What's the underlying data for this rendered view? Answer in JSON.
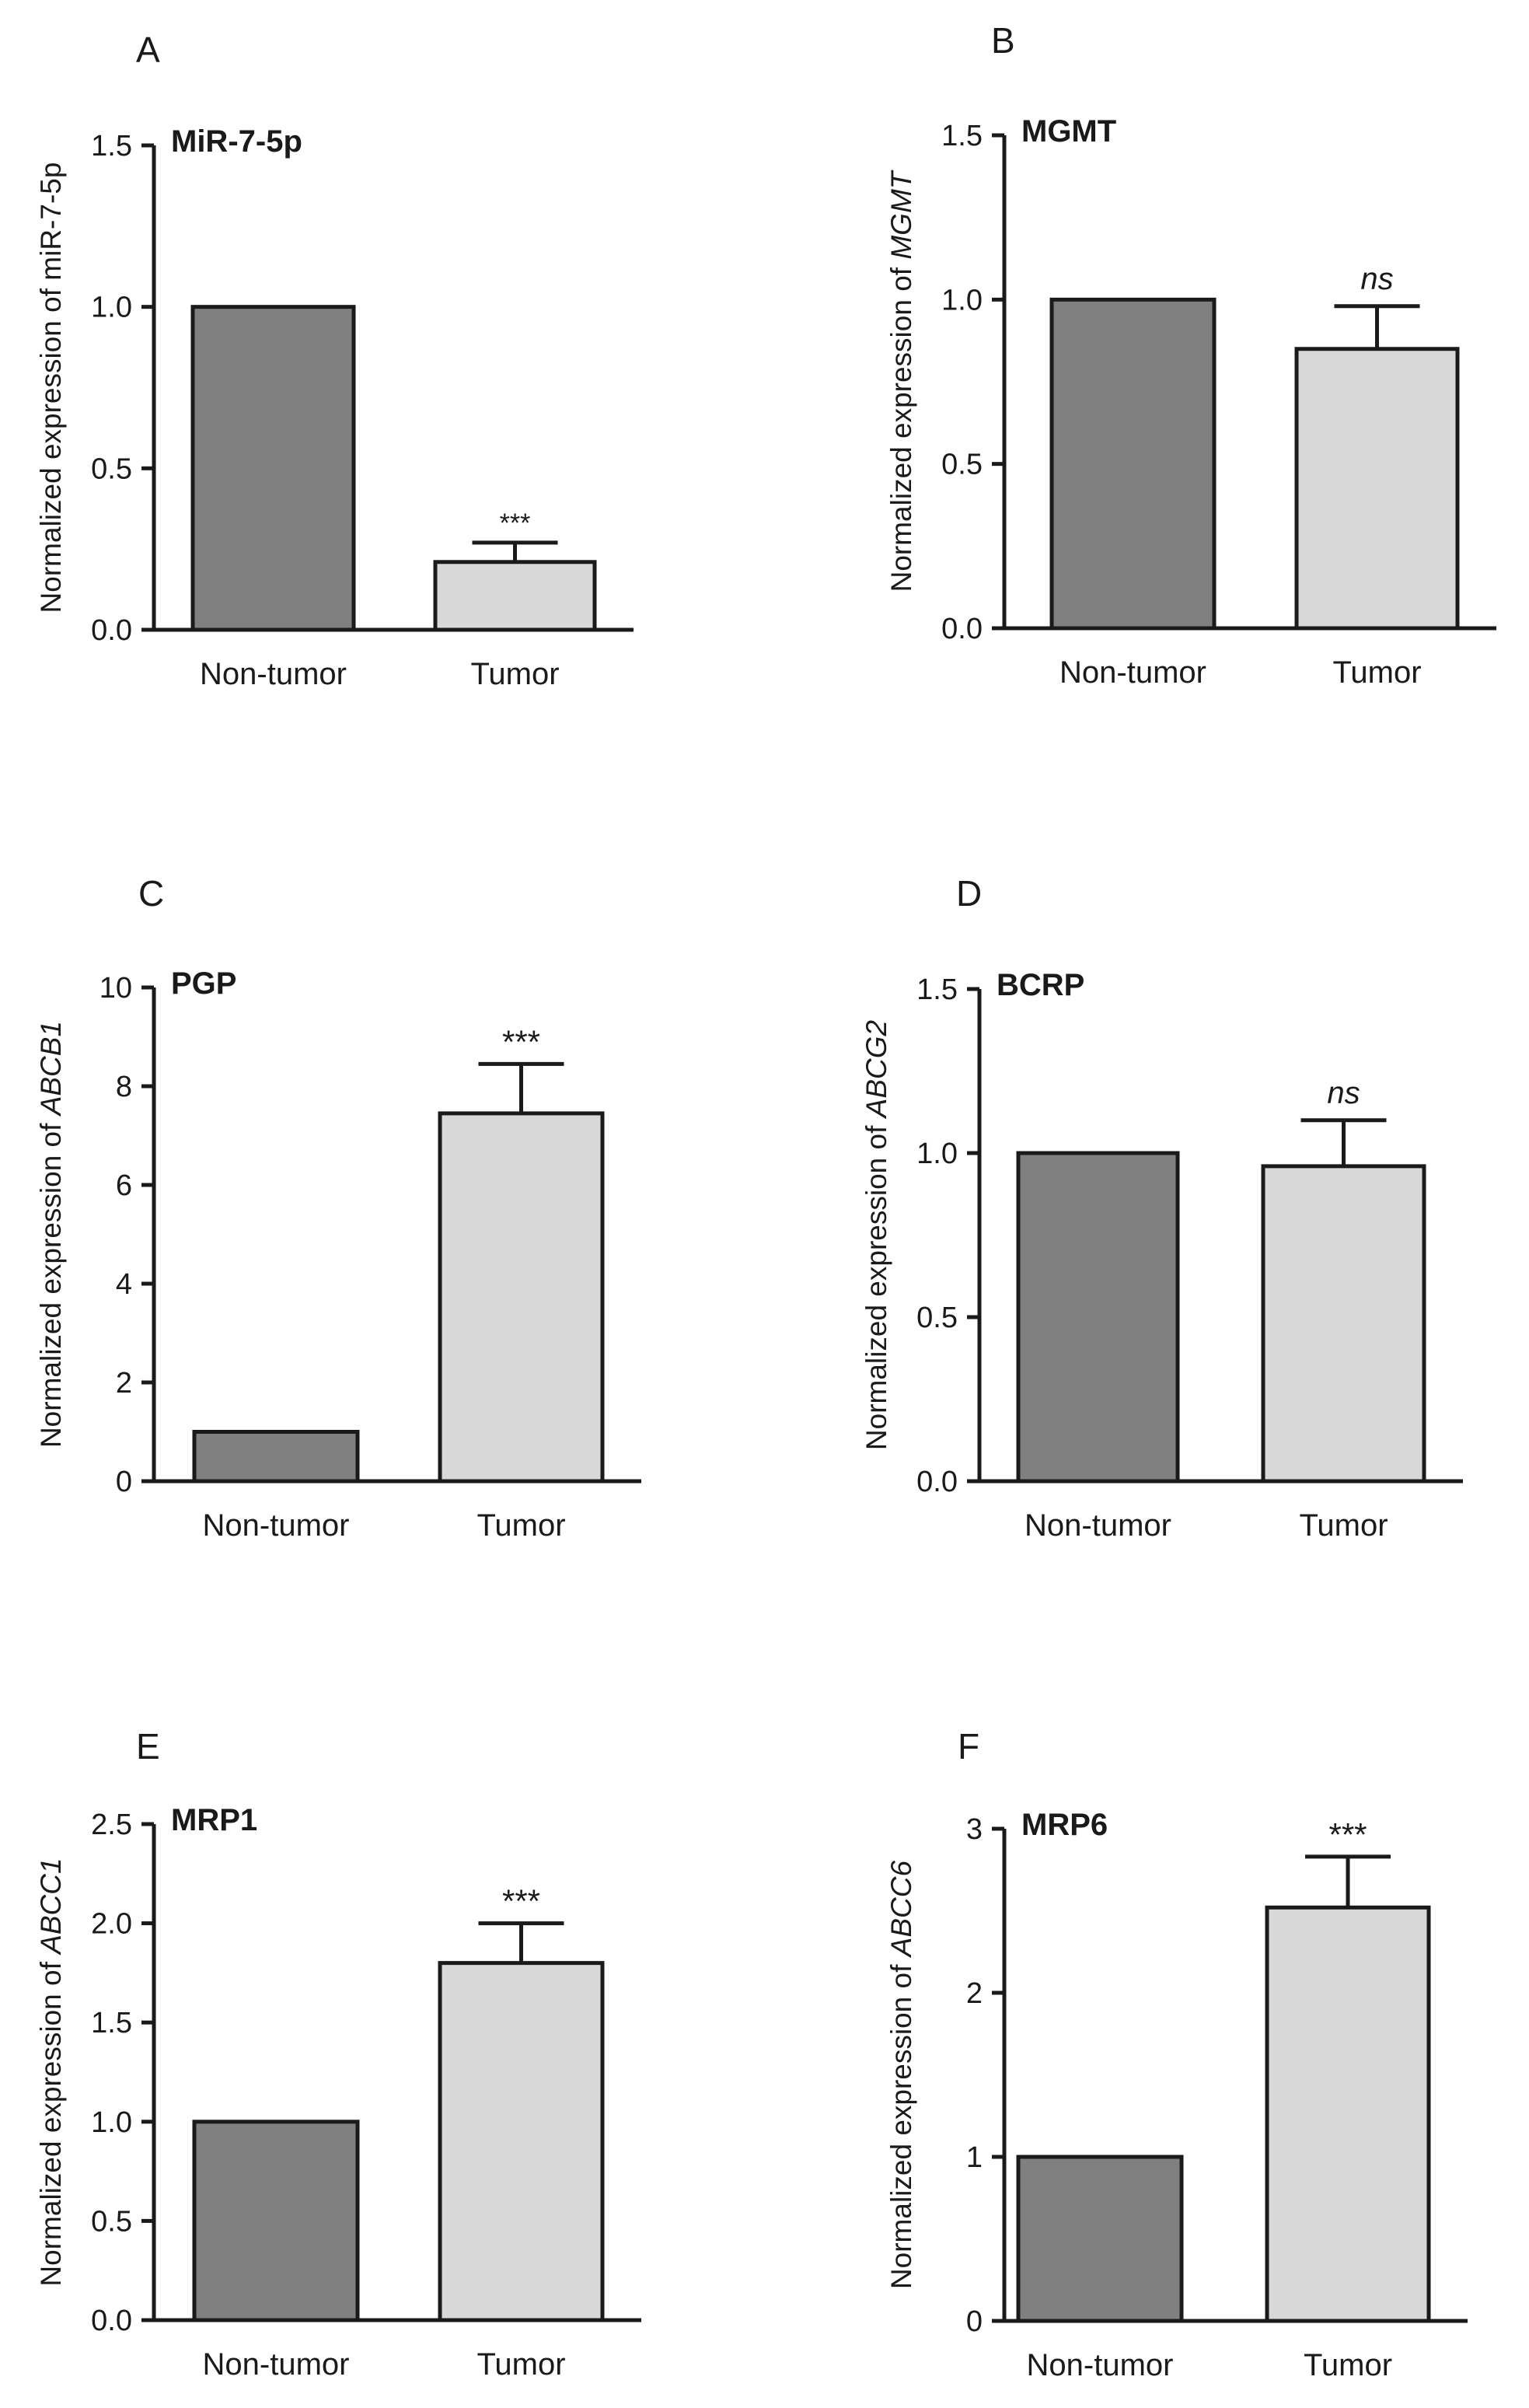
{
  "colors": {
    "non_tumor_bar": "#808080",
    "tumor_bar": "#d8d8d8",
    "axis": "#1a1a1a"
  },
  "chart_data": [
    {
      "panel": "A",
      "type": "bar",
      "title": "MiR-7-5p",
      "ylabel_prefix": "Normalized expression of ",
      "ylabel_gene": "miR-7-5p",
      "ylabel_gene_italic": false,
      "categories": [
        "Non-tumor",
        "Tumor"
      ],
      "values": [
        1.0,
        0.21
      ],
      "errors": [
        0,
        0.06
      ],
      "significance": [
        "",
        "***"
      ],
      "significance_italic": false,
      "ylim": [
        0,
        1.5
      ],
      "yticks": [
        0.0,
        0.5,
        1.0,
        1.5
      ],
      "ytick_labels": [
        "0.0",
        "0.5",
        "1.0",
        "1.5"
      ]
    },
    {
      "panel": "B",
      "type": "bar",
      "title": "MGMT",
      "ylabel_prefix": "Normalized expression of ",
      "ylabel_gene": "MGMT",
      "ylabel_gene_italic": true,
      "categories": [
        "Non-tumor",
        "Tumor"
      ],
      "values": [
        1.0,
        0.85
      ],
      "errors": [
        0,
        0.13
      ],
      "significance": [
        "",
        "ns"
      ],
      "significance_italic": true,
      "ylim": [
        0,
        1.5
      ],
      "yticks": [
        0.0,
        0.5,
        1.0,
        1.5
      ],
      "ytick_labels": [
        "0.0",
        "0.5",
        "1.0",
        "1.5"
      ]
    },
    {
      "panel": "C",
      "type": "bar",
      "title": "PGP",
      "ylabel_prefix": "Normalized expression of ",
      "ylabel_gene": "ABCB1",
      "ylabel_gene_italic": true,
      "categories": [
        "Non-tumor",
        "Tumor"
      ],
      "values": [
        1.0,
        7.45
      ],
      "errors": [
        0,
        1.0
      ],
      "significance": [
        "",
        "***"
      ],
      "significance_italic": false,
      "ylim": [
        0,
        10
      ],
      "yticks": [
        0,
        2,
        4,
        6,
        8,
        10
      ],
      "ytick_labels": [
        "0",
        "2",
        "4",
        "6",
        "8",
        "10"
      ]
    },
    {
      "panel": "D",
      "type": "bar",
      "title": "BCRP",
      "ylabel_prefix": "Normalized expression of ",
      "ylabel_gene": "ABCG2",
      "ylabel_gene_italic": true,
      "categories": [
        "Non-tumor",
        "Tumor"
      ],
      "values": [
        1.0,
        0.96
      ],
      "errors": [
        0,
        0.14
      ],
      "significance": [
        "",
        "ns"
      ],
      "significance_italic": true,
      "ylim": [
        0,
        1.5
      ],
      "yticks": [
        0.0,
        0.5,
        1.0,
        1.5
      ],
      "ytick_labels": [
        "0.0",
        "0.5",
        "1.0",
        "1.5"
      ]
    },
    {
      "panel": "E",
      "type": "bar",
      "title": "MRP1",
      "ylabel_prefix": "Normalized expression of ",
      "ylabel_gene": "ABCC1",
      "ylabel_gene_italic": true,
      "categories": [
        "Non-tumor",
        "Tumor"
      ],
      "values": [
        1.0,
        1.8
      ],
      "errors": [
        0,
        0.2
      ],
      "significance": [
        "",
        "***"
      ],
      "significance_italic": false,
      "ylim": [
        0,
        2.5
      ],
      "yticks": [
        0.0,
        0.5,
        1.0,
        1.5,
        2.0,
        2.5
      ],
      "ytick_labels": [
        "0.0",
        "0.5",
        "1.0",
        "1.5",
        "2.0",
        "2.5"
      ]
    },
    {
      "panel": "F",
      "type": "bar",
      "title": "MRP6",
      "ylabel_prefix": "Normalized expression of ",
      "ylabel_gene": "ABCC6",
      "ylabel_gene_italic": true,
      "categories": [
        "Non-tumor",
        "Tumor"
      ],
      "values": [
        1.0,
        2.52
      ],
      "errors": [
        0,
        0.31
      ],
      "significance": [
        "",
        "***"
      ],
      "significance_italic": false,
      "ylim": [
        0,
        3
      ],
      "yticks": [
        0,
        1,
        2,
        3
      ],
      "ytick_labels": [
        "0",
        "1",
        "2",
        "3"
      ]
    }
  ]
}
